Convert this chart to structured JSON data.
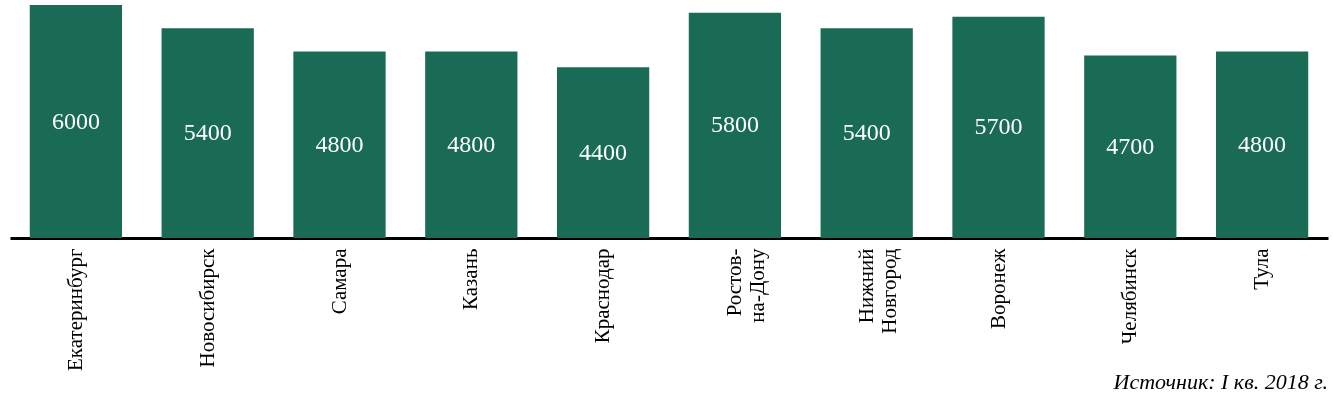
{
  "chart_data": {
    "type": "bar",
    "categories": [
      "Екатеринбург",
      "Новосибирск",
      "Самара",
      "Казань",
      "Краснодар",
      "Ростов-\nна-Дону",
      "Нижний\nНовгород",
      "Воронеж",
      "Челябинск",
      "Тула"
    ],
    "values": [
      6000,
      5400,
      4800,
      4800,
      4400,
      5800,
      5400,
      5700,
      4700,
      4800
    ],
    "color": "#1a6b55",
    "data_labels": true,
    "annotations": [
      "Источник: I кв. 2018 г."
    ]
  }
}
